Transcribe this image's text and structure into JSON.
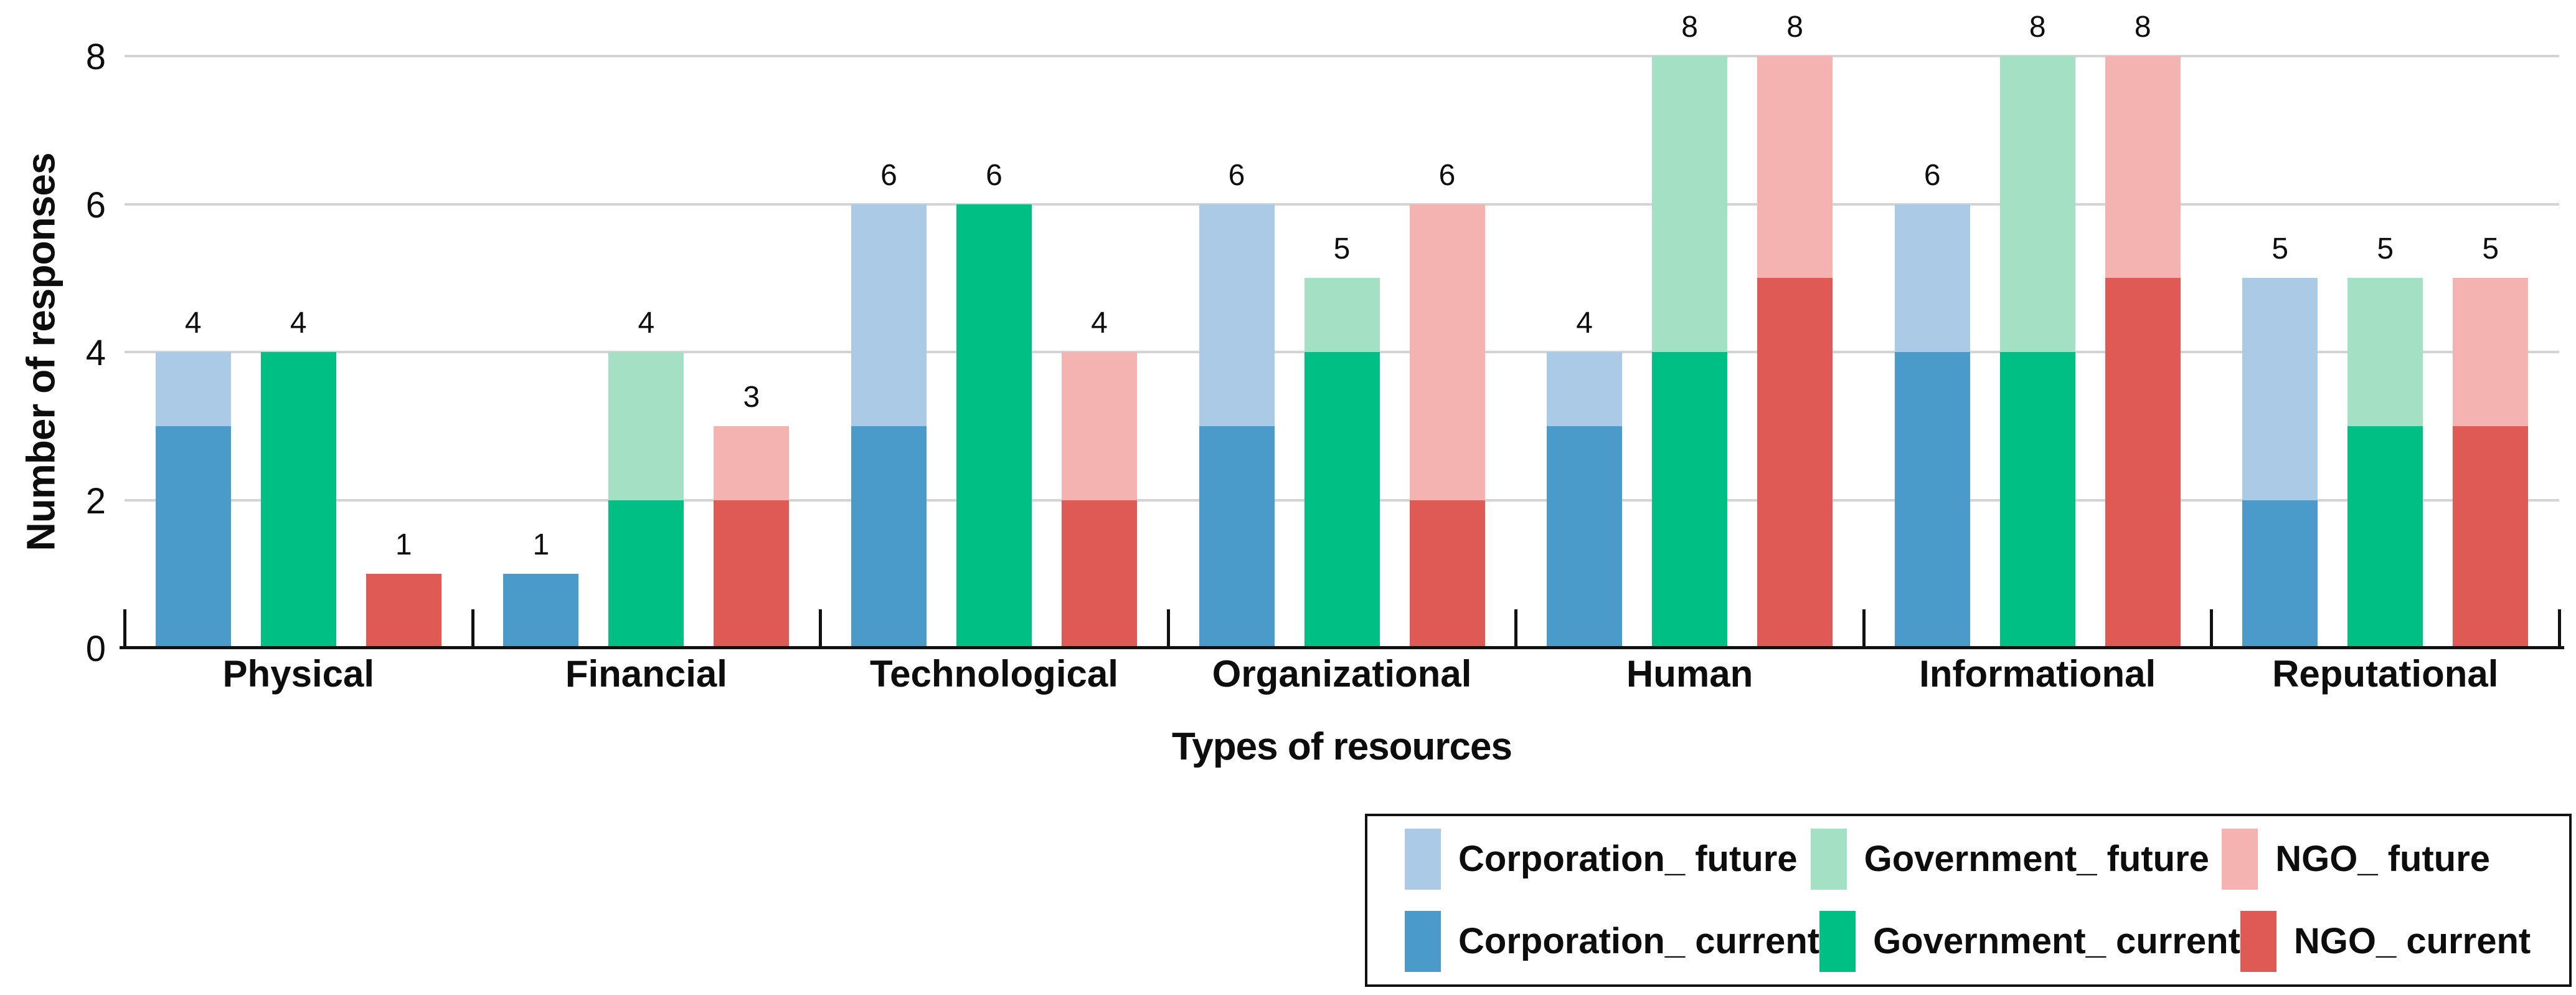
{
  "axes": {
    "y_title": "Number of responses",
    "x_title": "Types of resources"
  },
  "chart_data": {
    "type": "bar",
    "variant": "stacked-current-future",
    "title": "",
    "xlabel": "Types of resources",
    "ylabel": "Number of responses",
    "ylim": [
      0,
      8
    ],
    "yticks": [
      0,
      2,
      4,
      6,
      8
    ],
    "grid": true,
    "legend_position": "bottom-right",
    "bar_labels": "totals",
    "categories": [
      "Physical",
      "Financial",
      "Technological",
      "Organizational",
      "Human",
      "Informational",
      "Reputational"
    ],
    "groups": [
      {
        "org": "Corporation",
        "current_label": "Corporation_ current",
        "future_label": "Corporation_ future",
        "color_current": "#4A9BC9",
        "color_future": "#ABCAE5",
        "current": [
          3,
          1,
          3,
          3,
          3,
          4,
          2
        ],
        "total": [
          4,
          1,
          6,
          6,
          4,
          6,
          5
        ]
      },
      {
        "org": "Government",
        "current_label": "Government_ current",
        "future_label": "Government_ future",
        "color_current": "#00BF85",
        "color_future": "#A4E0C4",
        "current": [
          4,
          2,
          6,
          4,
          4,
          4,
          3
        ],
        "total": [
          4,
          4,
          6,
          5,
          8,
          8,
          5
        ]
      },
      {
        "org": "NGO",
        "current_label": "NGO_ current",
        "future_label": "NGO_ future",
        "color_current": "#E05A55",
        "color_future": "#F4B3B1",
        "current": [
          1,
          2,
          2,
          2,
          5,
          5,
          3
        ],
        "total": [
          1,
          3,
          4,
          6,
          8,
          8,
          5
        ]
      }
    ]
  },
  "legend": {
    "rows": [
      [
        {
          "label": "Corporation_ future",
          "color": "#ABCAE5"
        },
        {
          "label": "Government_ future",
          "color": "#A4E0C4"
        },
        {
          "label": "NGO_ future",
          "color": "#F4B3B1"
        }
      ],
      [
        {
          "label": "Corporation_ current",
          "color": "#4A9BC9"
        },
        {
          "label": "Government_ current",
          "color": "#00BF85"
        },
        {
          "label": "NGO_ current",
          "color": "#E05A55"
        }
      ]
    ]
  },
  "colors": {
    "gridline": "#d4d4d4",
    "axis": "#111111",
    "text": "#0d0d0d"
  }
}
